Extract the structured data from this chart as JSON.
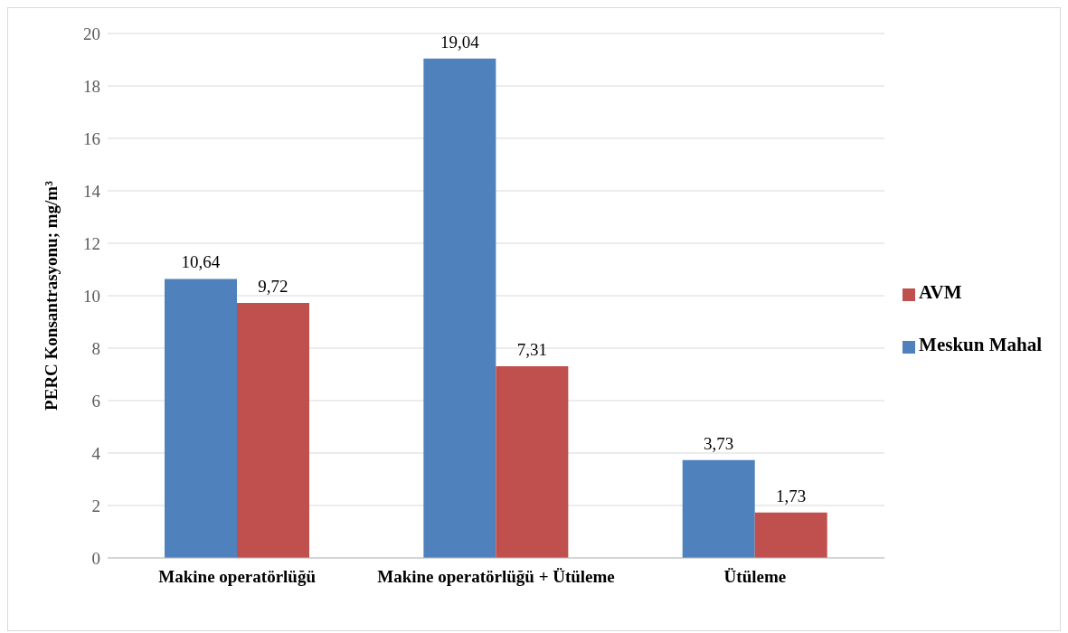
{
  "chart_data": {
    "type": "bar",
    "ylabel": "PERC Konsantrasyonu; mg/m³",
    "categories": [
      "Makine operatörlüğü",
      "Makine operatörlüğü + Ütüleme",
      "Ütüleme"
    ],
    "series": [
      {
        "name": "Meskun Mahal",
        "color": "#4f81bd",
        "values": [
          10.64,
          19.04,
          3.73
        ],
        "value_labels": [
          "10,64",
          "19,04",
          "3,73"
        ]
      },
      {
        "name": "AVM",
        "color": "#c0504d",
        "values": [
          9.72,
          7.31,
          1.73
        ],
        "value_labels": [
          "9,72",
          "7,31",
          "1,73"
        ]
      }
    ],
    "ylim": [
      0,
      20
    ],
    "yticks": [
      0,
      2,
      4,
      6,
      8,
      10,
      12,
      14,
      16,
      18,
      20
    ],
    "grid": "y",
    "legend": "right"
  }
}
